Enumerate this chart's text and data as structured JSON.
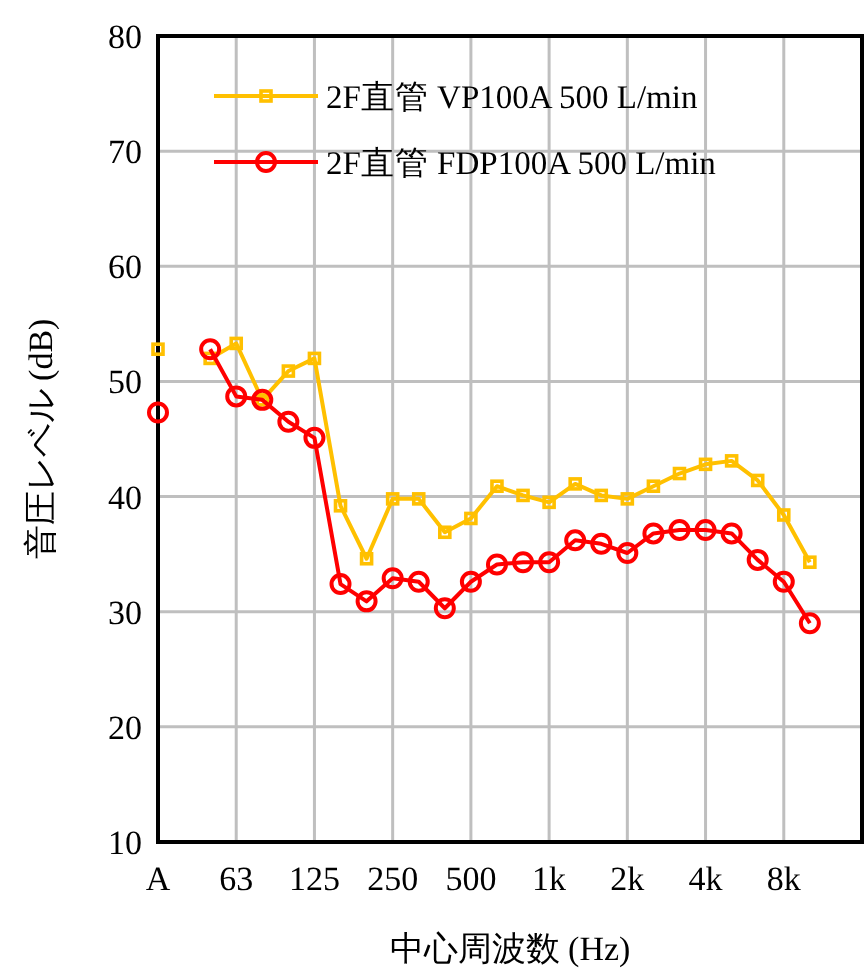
{
  "chart_data": {
    "type": "line",
    "xlabel": "中心周波数 (Hz)",
    "ylabel": "音圧レベル (dB)",
    "categories": [
      "A",
      null,
      null,
      "63",
      null,
      null,
      "125",
      null,
      null,
      "250",
      null,
      null,
      "500",
      null,
      null,
      "1k",
      null,
      null,
      "2k",
      null,
      null,
      "4k",
      null,
      null,
      "8k",
      null,
      null,
      null
    ],
    "ylim": [
      10,
      80
    ],
    "yticks": [
      10,
      20,
      30,
      40,
      50,
      60,
      70,
      80
    ],
    "grid": true,
    "legend": "top",
    "series": [
      {
        "name": "2F直管 VP100A 500 L/min",
        "color": "#ffc000",
        "marker": "square",
        "values": [
          52.8,
          null,
          52.0,
          53.3,
          48.4,
          50.9,
          52.0,
          39.2,
          34.6,
          39.8,
          39.8,
          36.9,
          38.1,
          40.9,
          40.1,
          39.5,
          41.1,
          40.1,
          39.8,
          40.9,
          42.0,
          42.8,
          43.1,
          41.4,
          38.4,
          34.3,
          null,
          null
        ]
      },
      {
        "name": "2F直管 FDP100A 500 L/min",
        "color": "#ff0000",
        "marker": "circle",
        "values": [
          47.3,
          null,
          52.8,
          48.7,
          48.4,
          46.5,
          45.1,
          32.4,
          30.9,
          32.9,
          32.6,
          30.3,
          32.6,
          34.1,
          34.3,
          34.3,
          36.2,
          35.9,
          35.1,
          36.8,
          37.1,
          37.1,
          36.8,
          34.5,
          32.6,
          29.0,
          null,
          null
        ]
      }
    ]
  }
}
